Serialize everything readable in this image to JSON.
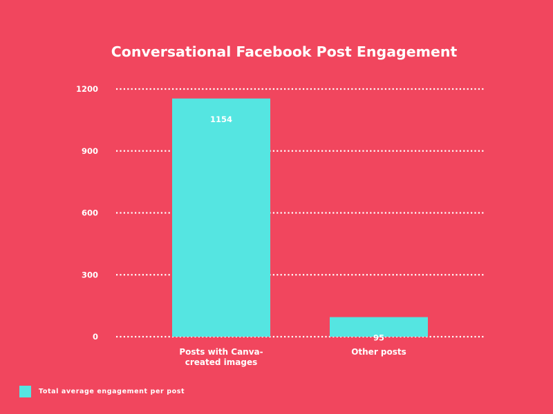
{
  "chart_data": {
    "type": "bar",
    "title": "Conversational Facebook Post Engagement",
    "categories": [
      "Posts with Canva-created images",
      "Other posts"
    ],
    "category_lines": [
      [
        "Posts with Canva-",
        "created images"
      ],
      [
        "Other posts"
      ]
    ],
    "series": [
      {
        "name": "Total average engagement per post",
        "values": [
          1154,
          95
        ]
      }
    ],
    "data_labels": [
      "1154",
      "95"
    ],
    "xlabel": "",
    "ylabel": "",
    "ylim": [
      0,
      1200
    ],
    "yticks": [
      0,
      300,
      600,
      900,
      1200
    ],
    "grid": true,
    "legend_position": "bottom-left"
  },
  "colors": {
    "background": "#f1465e",
    "bar": "#55e5e1",
    "text": "#ffffff",
    "grid": "#ffffff"
  }
}
